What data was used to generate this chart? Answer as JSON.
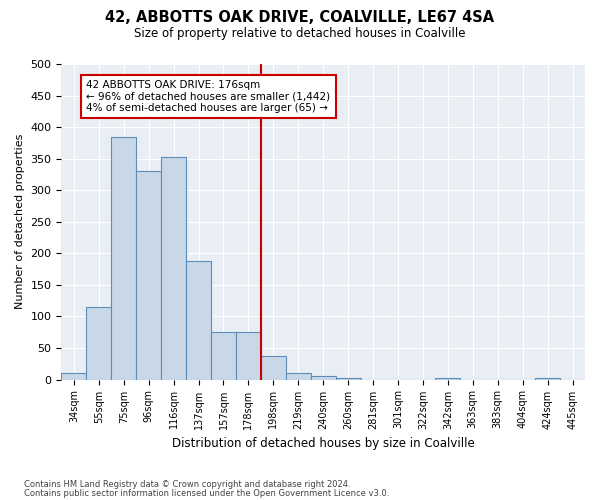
{
  "title": "42, ABBOTTS OAK DRIVE, COALVILLE, LE67 4SA",
  "subtitle": "Size of property relative to detached houses in Coalville",
  "xlabel": "Distribution of detached houses by size in Coalville",
  "ylabel": "Number of detached properties",
  "bar_labels": [
    "34sqm",
    "55sqm",
    "75sqm",
    "96sqm",
    "116sqm",
    "137sqm",
    "157sqm",
    "178sqm",
    "198sqm",
    "219sqm",
    "240sqm",
    "260sqm",
    "281sqm",
    "301sqm",
    "322sqm",
    "342sqm",
    "363sqm",
    "383sqm",
    "404sqm",
    "424sqm",
    "445sqm"
  ],
  "bar_values": [
    10,
    115,
    385,
    330,
    352,
    188,
    75,
    75,
    37,
    10,
    6,
    2,
    0,
    0,
    0,
    3,
    0,
    0,
    0,
    3,
    0
  ],
  "bar_color": "#c8d8e8",
  "bar_edge_color": "#5b8db8",
  "vline_x": 7.5,
  "annotation_title": "42 ABBOTTS OAK DRIVE: 176sqm",
  "annotation_line1": "← 96% of detached houses are smaller (1,442)",
  "annotation_line2": "4% of semi-detached houses are larger (65) →",
  "vline_color": "#cc0000",
  "annotation_box_color": "#cc0000",
  "ylim": [
    0,
    500
  ],
  "yticks": [
    0,
    50,
    100,
    150,
    200,
    250,
    300,
    350,
    400,
    450,
    500
  ],
  "bg_color": "#e8eef4",
  "footnote1": "Contains HM Land Registry data © Crown copyright and database right 2024.",
  "footnote2": "Contains public sector information licensed under the Open Government Licence v3.0."
}
